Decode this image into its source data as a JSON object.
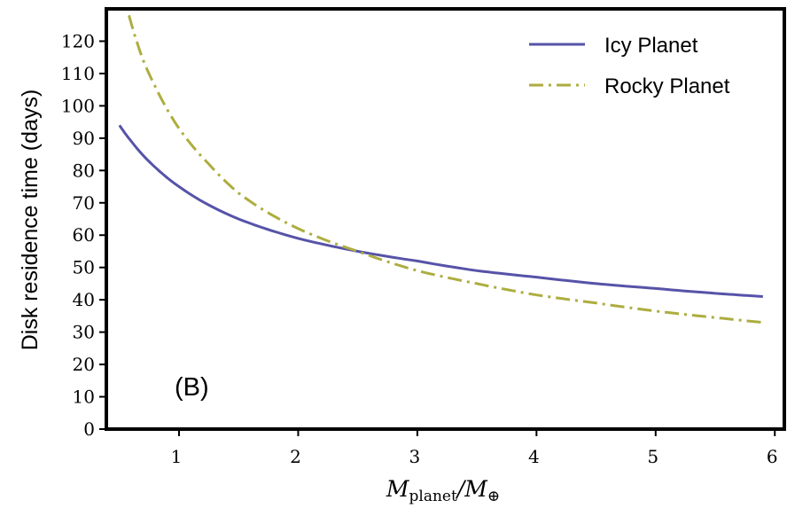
{
  "chart_data": {
    "type": "line",
    "title": "",
    "xlabel": "M_planet/M_⊕",
    "xlabel_parts": {
      "main": "M",
      "sub": "planet",
      "sep": "/M",
      "sub2": "⊕"
    },
    "ylabel": "Disk residence time (days)",
    "xlim": [
      0.39,
      6.08
    ],
    "ylim": [
      0,
      130
    ],
    "xticks": [
      1,
      2,
      3,
      4,
      5,
      6
    ],
    "yticks": [
      0,
      10,
      20,
      30,
      40,
      50,
      60,
      70,
      80,
      90,
      100,
      110,
      120
    ],
    "grid": false,
    "legend_position": "top-right",
    "annotation": "(B)",
    "series": [
      {
        "name": "Icy Planet",
        "color": "#5653a8",
        "style": "solid",
        "x": [
          0.5,
          0.6,
          0.8,
          1.0,
          1.5,
          2.0,
          2.5,
          3.0,
          3.5,
          4.0,
          4.5,
          5.0,
          5.5,
          5.9
        ],
        "y": [
          94,
          89,
          81,
          75,
          65,
          59,
          55,
          52,
          49,
          47,
          45,
          43.5,
          42,
          41
        ]
      },
      {
        "name": "Rocky Planet",
        "color": "#adad3f",
        "style": "dashdot",
        "x": [
          0.58,
          0.7,
          0.8,
          1.0,
          1.25,
          1.5,
          2.0,
          2.5,
          3.0,
          3.5,
          4.0,
          4.5,
          5.0,
          5.5,
          5.9
        ],
        "y": [
          128,
          114,
          106,
          93,
          82,
          73,
          62,
          55,
          49,
          45,
          41.5,
          39,
          36.5,
          34.5,
          33
        ]
      }
    ]
  }
}
